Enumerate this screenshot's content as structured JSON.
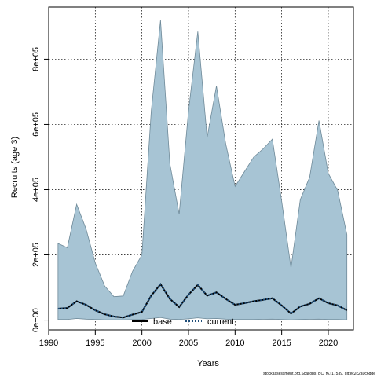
{
  "chart_data": {
    "type": "area",
    "xlabel": "Years",
    "ylabel": "Recruits (age 3)",
    "xlim": [
      1990,
      2022.7
    ],
    "ylim": [
      -30000,
      960000
    ],
    "xticks": [
      1990,
      1995,
      2000,
      2005,
      2010,
      2015,
      2020
    ],
    "xtick_labels": [
      "1990",
      "1995",
      "2000",
      "2005",
      "2010",
      "2015",
      "2020"
    ],
    "yticks": [
      0,
      200000,
      400000,
      600000,
      800000
    ],
    "ytick_labels": [
      "0e+00",
      "2e+05",
      "4e+05",
      "6e+05",
      "8e+05"
    ],
    "grid": true,
    "legend_position": "bottom-center",
    "x": [
      1991,
      1992,
      1993,
      1994,
      1995,
      1996,
      1997,
      1998,
      1999,
      2000,
      2001,
      2002,
      2003,
      2004,
      2005,
      2006,
      2007,
      2008,
      2009,
      2010,
      2011,
      2012,
      2013,
      2014,
      2015,
      2016,
      2017,
      2018,
      2019,
      2020,
      2021,
      2022
    ],
    "band_upper": [
      235000,
      222000,
      355000,
      280000,
      175000,
      105000,
      72000,
      74000,
      150000,
      200000,
      640000,
      920000,
      480000,
      325000,
      640000,
      885000,
      560000,
      718000,
      540000,
      410000,
      455000,
      500000,
      525000,
      555000,
      365000,
      160000,
      370000,
      438000,
      612000,
      450000,
      398000,
      262000
    ],
    "band_lower": [
      2000,
      2000,
      5000,
      3000,
      2000,
      1000,
      1000,
      1000,
      1500,
      2000,
      5000,
      8000,
      3000,
      2000,
      4000,
      7000,
      4000,
      5000,
      3000,
      2000,
      2000,
      2000,
      2500,
      3000,
      2000,
      1000,
      2000,
      2500,
      3000,
      2000,
      2000,
      1000
    ],
    "series": [
      {
        "name": "base",
        "color": "#000000",
        "style": "solid",
        "values": [
          35000,
          37000,
          58000,
          47000,
          30000,
          18000,
          11000,
          8000,
          17000,
          25000,
          75000,
          110000,
          65000,
          40000,
          78000,
          108000,
          75000,
          85000,
          65000,
          47000,
          52000,
          58000,
          62000,
          67000,
          45000,
          20000,
          42000,
          50000,
          67000,
          52000,
          45000,
          30000
        ]
      },
      {
        "name": "current",
        "color": "#1f4e79",
        "style": "dotted",
        "values": [
          35000,
          37000,
          58000,
          47000,
          30000,
          18000,
          11000,
          8000,
          17000,
          25000,
          75000,
          110000,
          65000,
          40000,
          78000,
          108000,
          75000,
          85000,
          65000,
          47000,
          52000,
          58000,
          62000,
          67000,
          45000,
          20000,
          42000,
          50000,
          67000,
          52000,
          45000,
          30000
        ]
      }
    ],
    "band_color": "#a7c4d4",
    "band_edge_color": "#6f8a99"
  },
  "footnote": "stockassessment.org,Scallops_BC_f6,r17539, git:ec2c2a0c6dde"
}
